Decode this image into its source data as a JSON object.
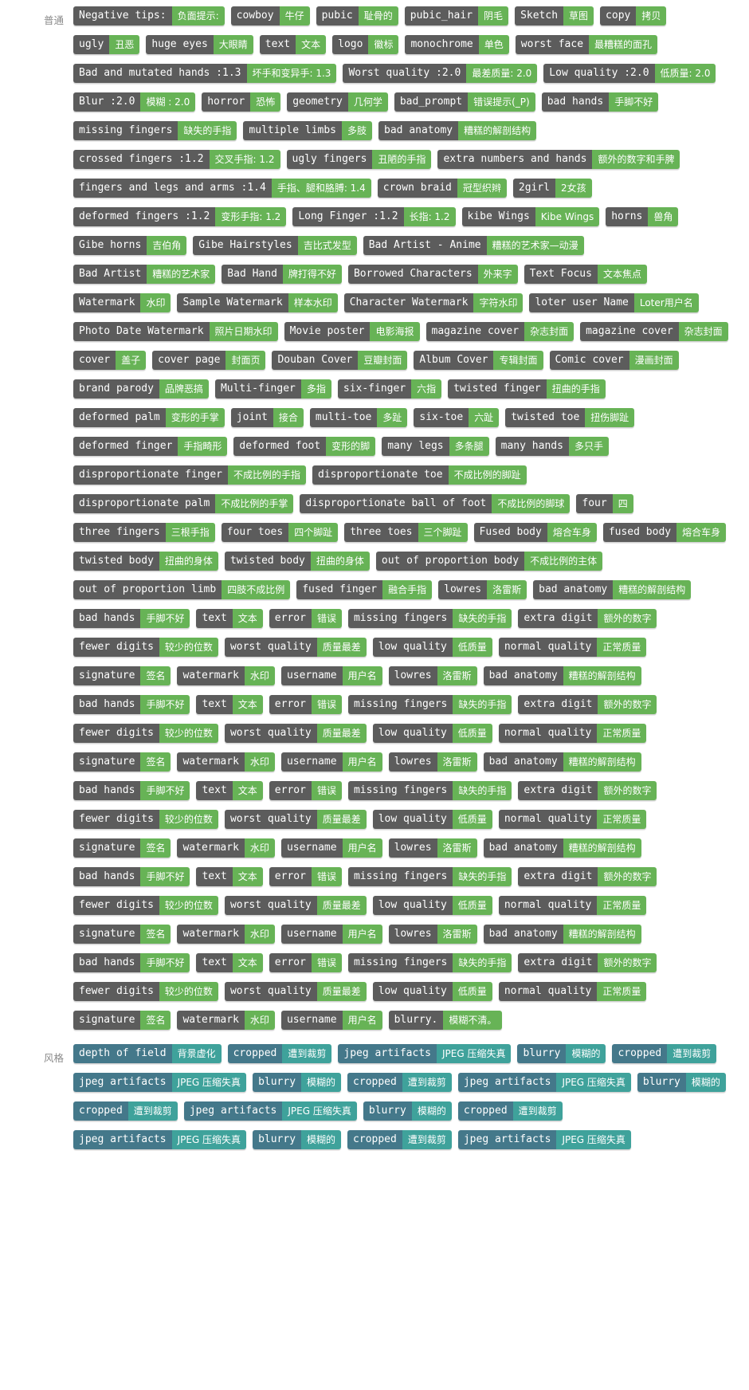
{
  "sections": [
    {
      "label": "普通",
      "style": "neg",
      "tags": [
        {
          "en": "Negative tips:",
          "zh": "负面提示:"
        },
        {
          "en": "cowboy",
          "zh": "牛仔"
        },
        {
          "en": "pubic",
          "zh": "耻骨的"
        },
        {
          "en": "pubic_hair",
          "zh": "阴毛"
        },
        {
          "en": "Sketch",
          "zh": "草图"
        },
        {
          "en": "copy",
          "zh": "拷贝"
        },
        {
          "en": "ugly",
          "zh": "丑恶"
        },
        {
          "en": "huge eyes",
          "zh": "大眼睛"
        },
        {
          "en": "text",
          "zh": "文本"
        },
        {
          "en": "logo",
          "zh": "徽标"
        },
        {
          "en": "monochrome",
          "zh": "单色"
        },
        {
          "en": "worst face",
          "zh": "最糟糕的面孔"
        },
        {
          "en": "Bad and mutated hands :1.3",
          "zh": "坏手和变异手: 1.3"
        },
        {
          "en": "Worst quality :2.0",
          "zh": "最差质量: 2.0"
        },
        {
          "en": "Low quality :2.0",
          "zh": "低质量: 2.0"
        },
        {
          "en": "Blur :2.0",
          "zh": "模糊 : 2.0"
        },
        {
          "en": "horror",
          "zh": "恐怖"
        },
        {
          "en": "geometry",
          "zh": "几何学"
        },
        {
          "en": "bad_prompt",
          "zh": "错误提示(_P)"
        },
        {
          "en": "bad hands",
          "zh": "手脚不好"
        },
        {
          "en": "missing fingers",
          "zh": "缺失的手指"
        },
        {
          "en": "multiple limbs",
          "zh": "多肢"
        },
        {
          "en": "bad anatomy",
          "zh": "糟糕的解剖结构"
        },
        {
          "en": "crossed fingers :1.2",
          "zh": "交叉手指: 1.2"
        },
        {
          "en": "ugly fingers",
          "zh": "丑陋的手指"
        },
        {
          "en": "extra numbers and hands",
          "zh": "额外的数字和手脾"
        },
        {
          "en": "fingers and legs and arms :1.4",
          "zh": "手指、腿和胳膊: 1.4"
        },
        {
          "en": "crown braid",
          "zh": "冠型织辫"
        },
        {
          "en": "2girl",
          "zh": "2女孩"
        },
        {
          "en": "deformed fingers :1.2",
          "zh": "变形手指: 1.2"
        },
        {
          "en": "Long Finger :1.2",
          "zh": "长指: 1.2"
        },
        {
          "en": "kibe Wings",
          "zh": "Kibe Wings"
        },
        {
          "en": "horns",
          "zh": "兽角"
        },
        {
          "en": "Gibe horns",
          "zh": "吉伯角"
        },
        {
          "en": "Gibe Hairstyles",
          "zh": "吉比式发型"
        },
        {
          "en": "Bad Artist - Anime",
          "zh": "糟糕的艺术家—动漫"
        },
        {
          "en": "Bad Artist",
          "zh": "糟糕的艺术家"
        },
        {
          "en": "Bad Hand",
          "zh": "牌打得不好"
        },
        {
          "en": "Borrowed Characters",
          "zh": "外来字"
        },
        {
          "en": "Text Focus",
          "zh": "文本焦点"
        },
        {
          "en": "Watermark",
          "zh": "水印"
        },
        {
          "en": "Sample Watermark",
          "zh": "样本水印"
        },
        {
          "en": "Character Watermark",
          "zh": "字符水印"
        },
        {
          "en": "loter user Name",
          "zh": "Loter用户名"
        },
        {
          "en": "Photo Date Watermark",
          "zh": "照片日期水印"
        },
        {
          "en": "Movie poster",
          "zh": "电影海报"
        },
        {
          "en": "magazine cover",
          "zh": "杂志封面"
        },
        {
          "en": "magazine cover",
          "zh": "杂志封面"
        },
        {
          "en": "cover",
          "zh": "盖子"
        },
        {
          "en": "cover page",
          "zh": "封面页"
        },
        {
          "en": "Douban Cover",
          "zh": "豆瓣封面"
        },
        {
          "en": "Album Cover",
          "zh": "专辑封面"
        },
        {
          "en": "Comic cover",
          "zh": "漫画封面"
        },
        {
          "en": "brand parody",
          "zh": "品牌恶搞"
        },
        {
          "en": "Multi-finger",
          "zh": "多指"
        },
        {
          "en": "six-finger",
          "zh": "六指"
        },
        {
          "en": "twisted finger",
          "zh": "扭曲的手指"
        },
        {
          "en": "deformed palm",
          "zh": "变形的手掌"
        },
        {
          "en": "joint",
          "zh": "接合"
        },
        {
          "en": "multi-toe",
          "zh": "多趾"
        },
        {
          "en": "six-toe",
          "zh": "六趾"
        },
        {
          "en": "twisted toe",
          "zh": "扭伤脚趾"
        },
        {
          "en": "deformed finger",
          "zh": "手指畸形"
        },
        {
          "en": "deformed foot",
          "zh": "变形的脚"
        },
        {
          "en": "many legs",
          "zh": "多条腿"
        },
        {
          "en": "many hands",
          "zh": "多只手"
        },
        {
          "en": "disproportionate finger",
          "zh": "不成比例的手指"
        },
        {
          "en": "disproportionate toe",
          "zh": "不成比例的脚趾"
        },
        {
          "en": "disproportionate palm",
          "zh": "不成比例的手掌"
        },
        {
          "en": "disproportionate ball of foot",
          "zh": "不成比例的脚球"
        },
        {
          "en": "four",
          "zh": "四"
        },
        {
          "en": "three fingers",
          "zh": "三根手指"
        },
        {
          "en": "four toes",
          "zh": "四个脚趾"
        },
        {
          "en": "three toes",
          "zh": "三个脚趾"
        },
        {
          "en": "Fused body",
          "zh": "熔合车身"
        },
        {
          "en": "fused body",
          "zh": "熔合车身"
        },
        {
          "en": "twisted body",
          "zh": "扭曲的身体"
        },
        {
          "en": "twisted body",
          "zh": "扭曲的身体"
        },
        {
          "en": "out of proportion body",
          "zh": "不成比例的主体"
        },
        {
          "en": "out of proportion limb",
          "zh": "四肢不成比例"
        },
        {
          "en": "fused finger",
          "zh": "融合手指"
        },
        {
          "en": "lowres",
          "zh": "洛雷斯"
        },
        {
          "en": "bad anatomy",
          "zh": "糟糕的解剖结构"
        },
        {
          "en": "bad hands",
          "zh": "手脚不好"
        },
        {
          "en": "text",
          "zh": "文本"
        },
        {
          "en": "error",
          "zh": "错误"
        },
        {
          "en": "missing fingers",
          "zh": "缺失的手指"
        },
        {
          "en": "extra digit",
          "zh": "额外的数字"
        },
        {
          "en": "fewer digits",
          "zh": "较少的位数"
        },
        {
          "en": "worst quality",
          "zh": "质量最差"
        },
        {
          "en": "low quality",
          "zh": "低质量"
        },
        {
          "en": "normal quality",
          "zh": "正常质量"
        },
        {
          "en": "signature",
          "zh": "签名"
        },
        {
          "en": "watermark",
          "zh": "水印"
        },
        {
          "en": "username",
          "zh": "用户名"
        },
        {
          "en": "lowres",
          "zh": "洛雷斯"
        },
        {
          "en": "bad anatomy",
          "zh": "糟糕的解剖结构"
        },
        {
          "en": "bad hands",
          "zh": "手脚不好"
        },
        {
          "en": "text",
          "zh": "文本"
        },
        {
          "en": "error",
          "zh": "错误"
        },
        {
          "en": "missing fingers",
          "zh": "缺失的手指"
        },
        {
          "en": "extra digit",
          "zh": "额外的数字"
        },
        {
          "en": "fewer digits",
          "zh": "较少的位数"
        },
        {
          "en": "worst quality",
          "zh": "质量最差"
        },
        {
          "en": "low quality",
          "zh": "低质量"
        },
        {
          "en": "normal quality",
          "zh": "正常质量"
        },
        {
          "en": "signature",
          "zh": "签名"
        },
        {
          "en": "watermark",
          "zh": "水印"
        },
        {
          "en": "username",
          "zh": "用户名"
        },
        {
          "en": "lowres",
          "zh": "洛雷斯"
        },
        {
          "en": "bad anatomy",
          "zh": "糟糕的解剖结构"
        },
        {
          "en": "bad hands",
          "zh": "手脚不好"
        },
        {
          "en": "text",
          "zh": "文本"
        },
        {
          "en": "error",
          "zh": "错误"
        },
        {
          "en": "missing fingers",
          "zh": "缺失的手指"
        },
        {
          "en": "extra digit",
          "zh": "额外的数字"
        },
        {
          "en": "fewer digits",
          "zh": "较少的位数"
        },
        {
          "en": "worst quality",
          "zh": "质量最差"
        },
        {
          "en": "low quality",
          "zh": "低质量"
        },
        {
          "en": "normal quality",
          "zh": "正常质量"
        },
        {
          "en": "signature",
          "zh": "签名"
        },
        {
          "en": "watermark",
          "zh": "水印"
        },
        {
          "en": "username",
          "zh": "用户名"
        },
        {
          "en": "lowres",
          "zh": "洛雷斯"
        },
        {
          "en": "bad anatomy",
          "zh": "糟糕的解剖结构"
        },
        {
          "en": "bad hands",
          "zh": "手脚不好"
        },
        {
          "en": "text",
          "zh": "文本"
        },
        {
          "en": "error",
          "zh": "错误"
        },
        {
          "en": "missing fingers",
          "zh": "缺失的手指"
        },
        {
          "en": "extra digit",
          "zh": "额外的数字"
        },
        {
          "en": "fewer digits",
          "zh": "较少的位数"
        },
        {
          "en": "worst quality",
          "zh": "质量最差"
        },
        {
          "en": "low quality",
          "zh": "低质量"
        },
        {
          "en": "normal quality",
          "zh": "正常质量"
        },
        {
          "en": "signature",
          "zh": "签名"
        },
        {
          "en": "watermark",
          "zh": "水印"
        },
        {
          "en": "username",
          "zh": "用户名"
        },
        {
          "en": "lowres",
          "zh": "洛雷斯"
        },
        {
          "en": "bad anatomy",
          "zh": "糟糕的解剖结构"
        },
        {
          "en": "bad hands",
          "zh": "手脚不好"
        },
        {
          "en": "text",
          "zh": "文本"
        },
        {
          "en": "error",
          "zh": "错误"
        },
        {
          "en": "missing fingers",
          "zh": "缺失的手指"
        },
        {
          "en": "extra digit",
          "zh": "额外的数字"
        },
        {
          "en": "fewer digits",
          "zh": "较少的位数"
        },
        {
          "en": "worst quality",
          "zh": "质量最差"
        },
        {
          "en": "low quality",
          "zh": "低质量"
        },
        {
          "en": "normal quality",
          "zh": "正常质量"
        },
        {
          "en": "signature",
          "zh": "签名"
        },
        {
          "en": "watermark",
          "zh": "水印"
        },
        {
          "en": "username",
          "zh": "用户名"
        },
        {
          "en": "blurry.",
          "zh": "模糊不清。"
        }
      ]
    },
    {
      "label": "风格",
      "style": "sty",
      "tags": [
        {
          "en": "depth of field",
          "zh": "背景虚化"
        },
        {
          "en": "cropped",
          "zh": "遭到裁剪"
        },
        {
          "en": "jpeg artifacts",
          "zh": "JPEG 压缩失真"
        },
        {
          "en": "blurry",
          "zh": "模糊的"
        },
        {
          "en": "cropped",
          "zh": "遭到裁剪"
        },
        {
          "en": "jpeg artifacts",
          "zh": "JPEG 压缩失真"
        },
        {
          "en": "blurry",
          "zh": "模糊的"
        },
        {
          "en": "cropped",
          "zh": "遭到裁剪"
        },
        {
          "en": "jpeg artifacts",
          "zh": "JPEG 压缩失真"
        },
        {
          "en": "blurry",
          "zh": "模糊的"
        },
        {
          "en": "cropped",
          "zh": "遭到裁剪"
        },
        {
          "en": "jpeg artifacts",
          "zh": "JPEG 压缩失真"
        },
        {
          "en": "blurry",
          "zh": "模糊的"
        },
        {
          "en": "cropped",
          "zh": "遭到裁剪"
        },
        {
          "en": "jpeg artifacts",
          "zh": "JPEG 压缩失真"
        },
        {
          "en": "blurry",
          "zh": "模糊的"
        },
        {
          "en": "cropped",
          "zh": "遭到裁剪"
        },
        {
          "en": "jpeg artifacts",
          "zh": "JPEG 压缩失真"
        }
      ]
    }
  ]
}
